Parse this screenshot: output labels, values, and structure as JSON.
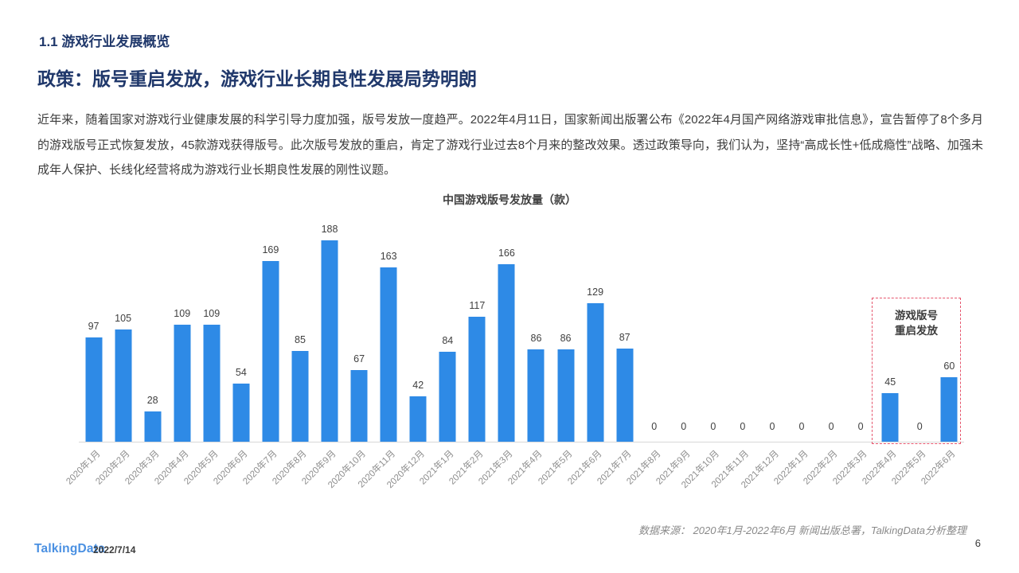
{
  "theme": {
    "navy": "#20386b",
    "bar": "#2e8ae6",
    "annot": "#e6556d",
    "logo": "#4a90e2"
  },
  "header": {
    "section_label": "1.1 游戏行业发展概览",
    "title": "政策：版号重启发放，游戏行业长期良性发展局势明朗",
    "body": "近年来，随着国家对游戏行业健康发展的科学引导力度加强，版号发放一度趋严。2022年4月11日，国家新闻出版署公布《2022年4月国产网络游戏审批信息》，宣告暂停了8个多月的游戏版号正式恢复发放，45款游戏获得版号。此次版号发放的重启，肯定了游戏行业过去8个月来的整改效果。透过政策导向，我们认为，坚持“高成长性+低成瘾性”战略、加强未成年人保护、长线化经营将成为游戏行业长期良性发展的刚性议题。"
  },
  "chart_data": {
    "type": "bar",
    "title": "中国游戏版号发放量（款）",
    "categories": [
      "2020年1月",
      "2020年2月",
      "2020年3月",
      "2020年4月",
      "2020年5月",
      "2020年6月",
      "2020年7月",
      "2020年8月",
      "2020年9月",
      "2020年10月",
      "2020年11月",
      "2020年12月",
      "2021年1月",
      "2021年2月",
      "2021年3月",
      "2021年4月",
      "2021年5月",
      "2021年6月",
      "2021年7月",
      "2021年8月",
      "2021年9月",
      "2021年10月",
      "2021年11月",
      "2021年12月",
      "2022年1月",
      "2022年2月",
      "2022年3月",
      "2022年4月",
      "2022年5月",
      "2022年6月"
    ],
    "values": [
      97,
      105,
      28,
      109,
      109,
      54,
      169,
      85,
      188,
      67,
      163,
      42,
      84,
      117,
      166,
      86,
      86,
      129,
      87,
      0,
      0,
      0,
      0,
      0,
      0,
      0,
      0,
      45,
      0,
      60
    ],
    "ylim": [
      0,
      200
    ],
    "grid": false,
    "value_labels": true,
    "bar_color": "#2e8ae6",
    "annotation": {
      "line1": "游戏版号",
      "line2": "重启发放",
      "box_style": "red-dashed",
      "covers_categories": [
        "2022年4月",
        "2022年5月",
        "2022年6月"
      ]
    },
    "source_note": "数据来源： 2020年1月-2022年6月 新闻出版总署，TalkingData分析整理"
  },
  "footer": {
    "logo": "TalkingData",
    "date": "2022/7/14",
    "page_number": "6"
  }
}
